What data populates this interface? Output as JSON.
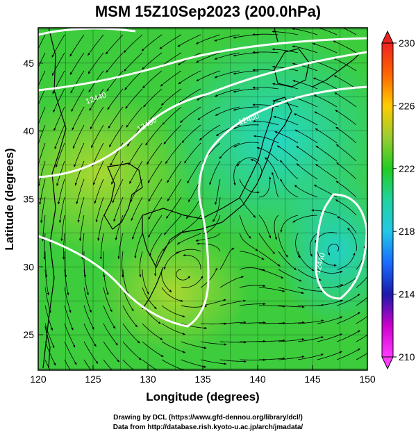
{
  "title": "MSM 15Z10Sep2023 (200.0hPa)",
  "axes": {
    "x_label": "Longitude (degrees)",
    "y_label": "Latitude (degrees)",
    "x_range": [
      120,
      150
    ],
    "y_range": [
      22.4,
      47.6
    ],
    "x_ticks": [
      120,
      125,
      130,
      135,
      140,
      145,
      150
    ],
    "y_ticks": [
      25,
      30,
      35,
      40,
      45
    ],
    "grid": true
  },
  "colorbar": {
    "min": 210,
    "max": 230,
    "tick_labels": [
      "210",
      "214",
      "218",
      "222",
      "226",
      "230"
    ],
    "tick_values": [
      210,
      214,
      218,
      222,
      226,
      230
    ],
    "placement": "right"
  },
  "contour_labels": [
    "12440",
    "12400",
    "12400",
    "12440"
  ],
  "footer": {
    "line1": "Drawing by DCL (https://www.gfd-dennou.org/library/dcl/)",
    "line2": "Data from http://database.rish.kyoto-u.ac.jp/arch/jmadata/"
  },
  "colors": {
    "field_high": "#9acd32",
    "field_mid": "#33cc33",
    "field_low": "#22d3c0",
    "contour": "#ffffff",
    "coast": "#000000"
  }
}
